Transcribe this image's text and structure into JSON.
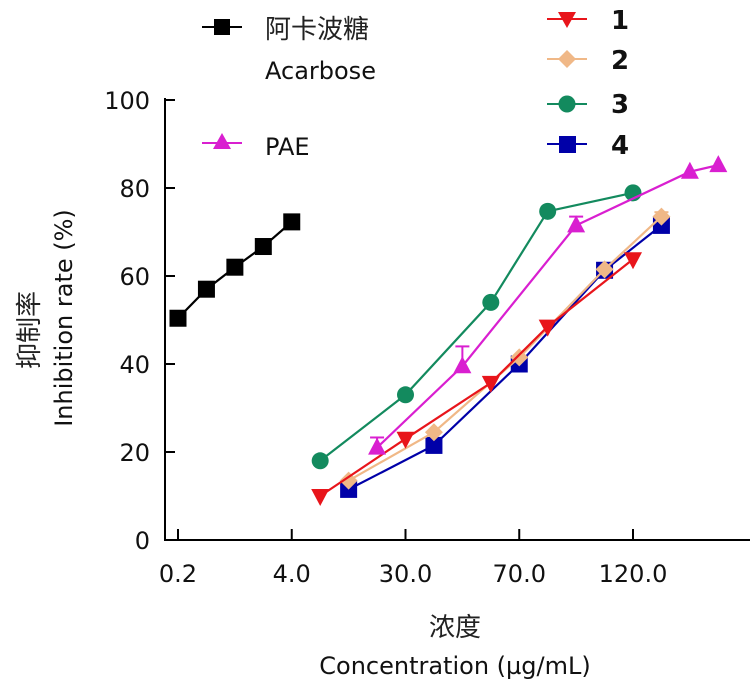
{
  "chart_data": {
    "type": "line",
    "title": "",
    "xlabel_cn": "浓度",
    "xlabel": "Concentration (µg/mL)",
    "ylabel_cn": "抑制率",
    "ylabel": "Inhibition rate (%)",
    "ylim": [
      0,
      100
    ],
    "yticks": [
      "0",
      "20",
      "40",
      "60",
      "80",
      "100"
    ],
    "yticks_values": [
      0,
      20,
      40,
      60,
      80,
      100
    ],
    "xticks": [
      "0.2",
      "4.0",
      "30.0",
      "70.0",
      "120.0"
    ],
    "xticks_pos": [
      0,
      1,
      2,
      3,
      4
    ],
    "xlim": [
      -0.12,
      4.9
    ],
    "grid": false,
    "legend_placement": "top",
    "series": [
      {
        "key": "acarbose",
        "name_cn": "阿卡波糖",
        "name": "Acarbose",
        "color": "#000000",
        "marker": "square",
        "x": [
          0,
          0.25,
          0.5,
          0.75,
          1.0
        ],
        "values": [
          50.4,
          57.0,
          62.0,
          66.7,
          72.3
        ],
        "errors": [
          0,
          0,
          0,
          0,
          0
        ]
      },
      {
        "key": "pae",
        "name": "PAE",
        "color": "#d91fd0",
        "marker": "triangle-up",
        "x": [
          1.75,
          2.5,
          3.5,
          4.5,
          4.75
        ],
        "values": [
          21.0,
          39.5,
          71.5,
          83.7,
          85.2
        ],
        "errors": [
          2.3,
          4.5,
          2.0,
          0,
          0
        ]
      },
      {
        "key": "s1",
        "name": "1",
        "color": "#e8151b",
        "marker": "triangle-down",
        "x": [
          1.25,
          2.0,
          2.75,
          3.25,
          4.0
        ],
        "values": [
          10.0,
          23.0,
          35.7,
          48.5,
          63.8
        ],
        "errors": [
          0,
          0,
          0,
          0,
          0
        ]
      },
      {
        "key": "s2",
        "name": "2",
        "color": "#f0b887",
        "marker": "diamond",
        "x": [
          1.5,
          2.25,
          3.0,
          3.75,
          4.25
        ],
        "values": [
          13.5,
          24.5,
          41.5,
          61.5,
          73.5
        ],
        "errors": [
          0,
          0,
          0,
          0,
          1.0
        ]
      },
      {
        "key": "s3",
        "name": "3",
        "color": "#138a5e",
        "marker": "circle",
        "x": [
          1.25,
          2.0,
          2.75,
          3.25,
          4.0
        ],
        "values": [
          18.0,
          33.0,
          54.0,
          74.7,
          78.9
        ],
        "errors": [
          0,
          0,
          0,
          0,
          0
        ]
      },
      {
        "key": "s4",
        "name": "4",
        "color": "#0000a8",
        "marker": "square",
        "x": [
          1.5,
          2.25,
          3.0,
          3.75,
          4.25
        ],
        "values": [
          11.5,
          21.5,
          40.0,
          61.3,
          71.5
        ],
        "errors": [
          0,
          0,
          0,
          0,
          0
        ]
      }
    ]
  }
}
